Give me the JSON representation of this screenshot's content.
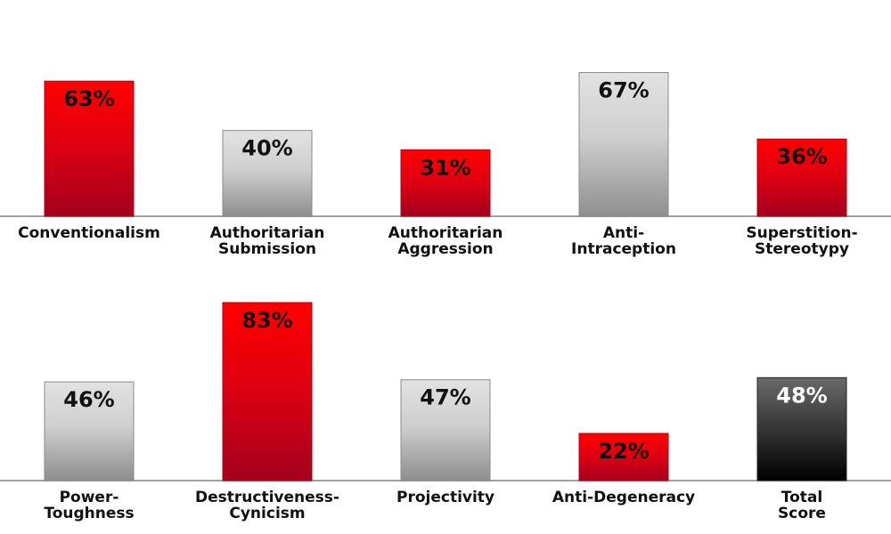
{
  "chart_data": {
    "type": "bar",
    "rows": [
      {
        "categories": [
          [
            "Conventionalism"
          ],
          [
            "Authoritarian",
            "Submission"
          ],
          [
            "Authoritarian",
            "Aggression"
          ],
          [
            "Anti-",
            "Intraception"
          ],
          [
            "Superstition-",
            "Stereotypy"
          ]
        ],
        "values": [
          63,
          40,
          31,
          67,
          36
        ],
        "value_labels": [
          "63%",
          "40%",
          "31%",
          "67%",
          "36%"
        ],
        "styles": [
          "red",
          "gray",
          "red",
          "gray",
          "red"
        ]
      },
      {
        "categories": [
          [
            "Power-",
            "Toughness"
          ],
          [
            "Destructiveness-",
            "Cynicism"
          ],
          [
            "Projectivity"
          ],
          [
            "Anti-Degeneracy"
          ],
          [
            "Total",
            "Score"
          ]
        ],
        "values": [
          46,
          83,
          47,
          22,
          48
        ],
        "value_labels": [
          "46%",
          "83%",
          "47%",
          "22%",
          "48%"
        ],
        "styles": [
          "gray",
          "red",
          "gray",
          "red",
          "black"
        ]
      }
    ],
    "value_unit": "%",
    "ylim": [
      0,
      100
    ],
    "grid": false,
    "legend": "none",
    "colors": {
      "red_top": "#ff0000",
      "red_mid": "#e00010",
      "red_bottom": "#a3001e",
      "gray_top": "#e2e2e2",
      "gray_mid": "#cfcfcf",
      "gray_bottom": "#8e8e8e",
      "black_top": "#6a6a6a",
      "black_bottom": "#000000",
      "axis": "#a0a0a0"
    }
  }
}
